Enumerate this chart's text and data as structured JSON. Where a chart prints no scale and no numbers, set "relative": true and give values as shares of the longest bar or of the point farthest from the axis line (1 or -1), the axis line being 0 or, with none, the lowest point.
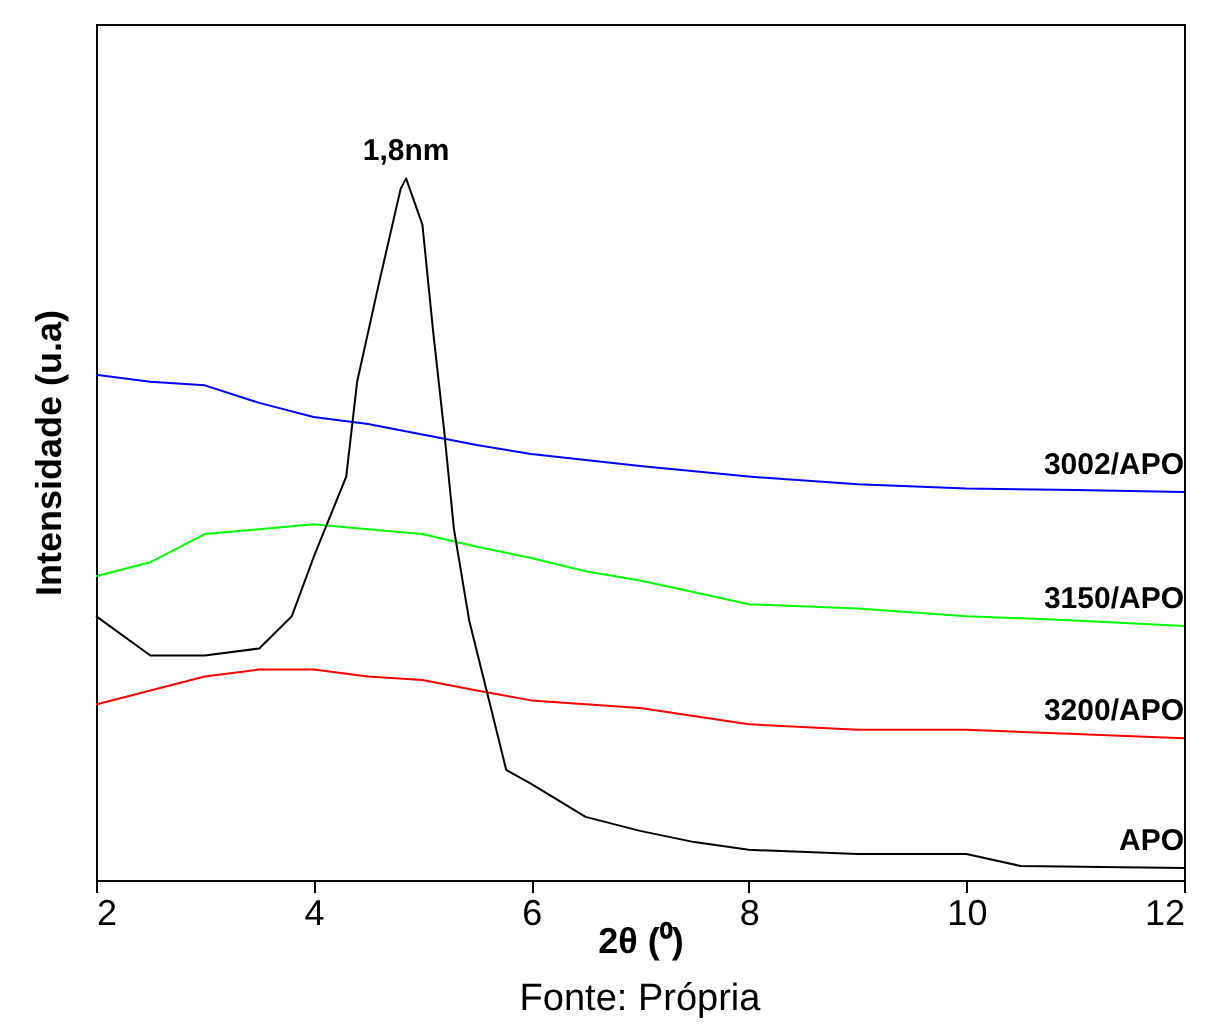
{
  "chart_data": {
    "type": "line",
    "relative": true,
    "xlabel": "2θ (⁰)",
    "ylabel": "Intensidade (u.a)",
    "xlim": [
      2,
      12
    ],
    "xticks": [
      2,
      4,
      6,
      8,
      10,
      12
    ],
    "grid": false,
    "marker": "none",
    "line_style": "solid",
    "annotations": [
      {
        "text": "1,8nm",
        "x": 4.85,
        "y": 1.0
      },
      "Fonte: Própria"
    ],
    "series": [
      {
        "name": "3002/APO",
        "color": "#0000ff",
        "x": [
          2,
          2.5,
          3,
          3.5,
          4,
          4.5,
          5,
          5.5,
          6,
          7,
          8,
          9,
          10,
          11,
          12
        ],
        "values": [
          0.72,
          0.71,
          0.705,
          0.68,
          0.66,
          0.65,
          0.635,
          0.62,
          0.607,
          0.59,
          0.575,
          0.564,
          0.558,
          0.556,
          0.553
        ]
      },
      {
        "name": "3150/APO",
        "color": "#00ff00",
        "x": [
          2,
          2.5,
          3,
          3.5,
          4,
          4.5,
          5,
          5.5,
          6,
          6.5,
          7,
          7.5,
          8,
          9,
          10,
          11,
          12
        ],
        "values": [
          0.433,
          0.453,
          0.493,
          0.5,
          0.507,
          0.5,
          0.493,
          0.475,
          0.459,
          0.44,
          0.427,
          0.41,
          0.393,
          0.387,
          0.376,
          0.37,
          0.362
        ]
      },
      {
        "name": "3200/APO",
        "color": "#ff0000",
        "x": [
          2,
          2.5,
          3,
          3.5,
          4,
          4.5,
          5,
          5.5,
          6,
          7,
          8,
          9,
          10,
          11,
          12
        ],
        "values": [
          0.25,
          0.27,
          0.29,
          0.3,
          0.3,
          0.29,
          0.285,
          0.27,
          0.256,
          0.245,
          0.222,
          0.214,
          0.214,
          0.208,
          0.202
        ]
      },
      {
        "name": "APO",
        "color": "#000000",
        "x": [
          2,
          2.5,
          3,
          3.5,
          3.8,
          4,
          4.3,
          4.4,
          4.6,
          4.8,
          4.85,
          5,
          5.1,
          5.2,
          5.29,
          5.43,
          5.63,
          5.77,
          6,
          6.5,
          7,
          7.5,
          8,
          9,
          10,
          10.5,
          12
        ],
        "values": [
          0.376,
          0.32,
          0.32,
          0.33,
          0.376,
          0.46,
          0.575,
          0.71,
          0.85,
          0.985,
          1.0,
          0.934,
          0.78,
          0.64,
          0.5,
          0.37,
          0.245,
          0.157,
          0.137,
          0.09,
          0.07,
          0.054,
          0.043,
          0.037,
          0.037,
          0.02,
          0.017
        ]
      }
    ]
  }
}
